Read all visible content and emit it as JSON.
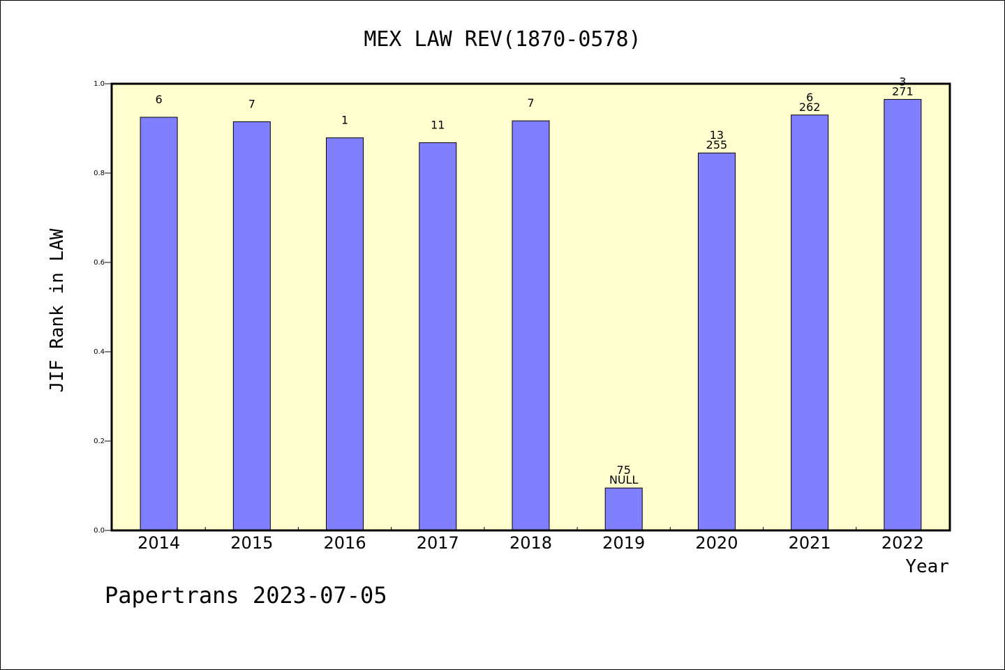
{
  "chart_data": {
    "type": "bar",
    "title": "MEX LAW REV(1870-0578)",
    "xlabel": "Year",
    "ylabel": "JIF Rank in LAW",
    "ylim": [
      0,
      1.0
    ],
    "yticks": [
      "0.0",
      "0.2",
      "0.4",
      "0.6",
      "0.8",
      "1.0"
    ],
    "categories": [
      "2014",
      "2015",
      "2016",
      "2017",
      "2018",
      "2019",
      "2020",
      "2021",
      "2022"
    ],
    "values": [
      0.925,
      0.915,
      0.879,
      0.868,
      0.917,
      0.095,
      0.845,
      0.93,
      0.965
    ],
    "labels_top": [
      "6",
      "7",
      "1",
      "11",
      "7",
      "75",
      "13",
      "6",
      "3"
    ],
    "labels_bottom": [
      "",
      "",
      "",
      "",
      "",
      "NULL",
      "255",
      "262",
      "271"
    ],
    "grid": false,
    "plot_background": "#ffffd0",
    "bar_color": "#8080ff"
  },
  "footer": {
    "credit": "Papertrans 2023-07-05"
  }
}
